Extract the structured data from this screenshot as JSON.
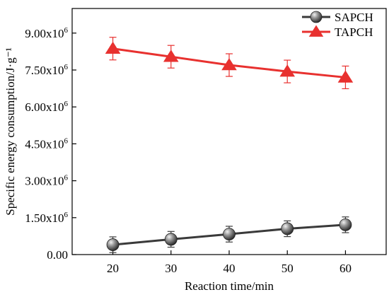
{
  "chart_data": {
    "type": "line",
    "x": [
      20,
      30,
      40,
      50,
      60
    ],
    "xlabel": "Reaction time/min",
    "ylabel": "Specific energy consumption/J·g⁻¹",
    "xlim": [
      13,
      67
    ],
    "ylim": [
      0,
      10000000
    ],
    "xticks": [
      20,
      30,
      40,
      50,
      60
    ],
    "xtick_labels": [
      "20",
      "30",
      "40",
      "50",
      "60"
    ],
    "yticks": [
      0,
      1500000,
      3000000,
      4500000,
      6000000,
      7500000,
      9000000
    ],
    "ytick_labels": [
      {
        "mantissa": "0.00",
        "exp": ""
      },
      {
        "mantissa": "1.50x10",
        "exp": "6"
      },
      {
        "mantissa": "3.00x10",
        "exp": "6"
      },
      {
        "mantissa": "4.50x10",
        "exp": "6"
      },
      {
        "mantissa": "6.00x10",
        "exp": "6"
      },
      {
        "mantissa": "7.50x10",
        "exp": "6"
      },
      {
        "mantissa": "9.00x10",
        "exp": "6"
      }
    ],
    "legend_position": "top-right",
    "series": [
      {
        "name": "SAPCH",
        "color": "#3a3a3a",
        "marker": "sphere",
        "values": [
          400000,
          620000,
          830000,
          1050000,
          1210000
        ],
        "errors": [
          320000,
          320000,
          320000,
          320000,
          320000
        ]
      },
      {
        "name": "TAPCH",
        "color": "#e8312f",
        "marker": "triangle",
        "values": [
          8370000,
          8040000,
          7700000,
          7440000,
          7200000
        ],
        "errors": [
          460000,
          460000,
          460000,
          460000,
          460000
        ]
      }
    ]
  }
}
